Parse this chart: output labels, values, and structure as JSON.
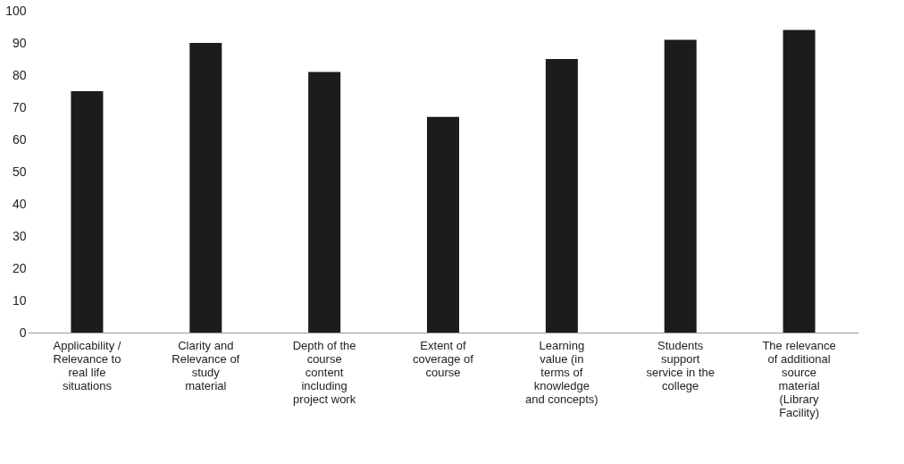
{
  "chart_data": {
    "type": "bar",
    "categories": [
      "Applicability /\nRelevance to\nreal life\nsituations",
      "Clarity and\nRelevance of\nstudy\nmaterial",
      "Depth of the\ncourse\ncontent\nincluding\nproject work",
      "Extent of\ncoverage of\ncourse",
      "Learning\nvalue (in\nterms of\nknowledge\nand concepts)",
      "Students\nsupport\nservice in the\ncollege",
      "The relevance\nof additional\nsource\nmaterial\n(Library\nFacility)"
    ],
    "values": [
      75,
      90,
      81,
      67,
      85,
      91,
      94
    ],
    "color": "#1c1c1c",
    "ylim": [
      0,
      100
    ],
    "yticks": [
      0,
      10,
      20,
      30,
      40,
      50,
      60,
      70,
      80,
      90,
      100
    ],
    "grid": false
  }
}
